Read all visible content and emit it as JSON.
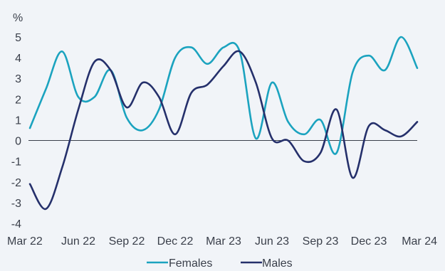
{
  "chart_data": {
    "type": "line",
    "unit_label": "%",
    "ylim": [
      -4,
      5
    ],
    "y_ticks": [
      "5",
      "4",
      "3",
      "2",
      "1",
      "0",
      "-1",
      "-2",
      "-3",
      "-4"
    ],
    "x_tick_labels": [
      "Mar 22",
      "Jun 22",
      "Sep 22",
      "Dec 22",
      "Mar 23",
      "Jun 23",
      "Sep 23",
      "Dec 23",
      "Mar 24"
    ],
    "x": [
      "Mar 22",
      "Apr 22",
      "May 22",
      "Jun 22",
      "Jul 22",
      "Aug 22",
      "Sep 22",
      "Oct 22",
      "Nov 22",
      "Dec 22",
      "Jan 23",
      "Feb 23",
      "Mar 23",
      "Apr 23",
      "May 23",
      "Jun 23",
      "Jul 23",
      "Aug 23",
      "Sep 23",
      "Oct 23",
      "Nov 23",
      "Dec 23",
      "Jan 24",
      "Feb 24",
      "Mar 24"
    ],
    "series": [
      {
        "name": "Females",
        "color": "#1ba3bf",
        "values": [
          0.6,
          2.5,
          4.3,
          2.1,
          2.1,
          3.4,
          1.1,
          0.5,
          1.5,
          4.0,
          4.5,
          3.7,
          4.5,
          4.3,
          0.1,
          2.8,
          0.9,
          0.3,
          1.0,
          -0.6,
          3.3,
          4.1,
          3.4,
          5.0,
          3.5
        ]
      },
      {
        "name": "Males",
        "color": "#25306b",
        "values": [
          -2.1,
          -3.3,
          -1.3,
          1.5,
          3.8,
          3.4,
          1.6,
          2.8,
          2.1,
          0.3,
          2.3,
          2.7,
          3.6,
          4.3,
          2.8,
          0.1,
          0.0,
          -1.0,
          -0.6,
          1.5,
          -1.8,
          0.7,
          0.5,
          0.2,
          0.9
        ]
      }
    ],
    "legend": [
      {
        "label": "Females",
        "color": "#1ba3bf"
      },
      {
        "label": "Males",
        "color": "#25306b"
      }
    ],
    "legend_position": "bottom-center",
    "grid": false
  }
}
